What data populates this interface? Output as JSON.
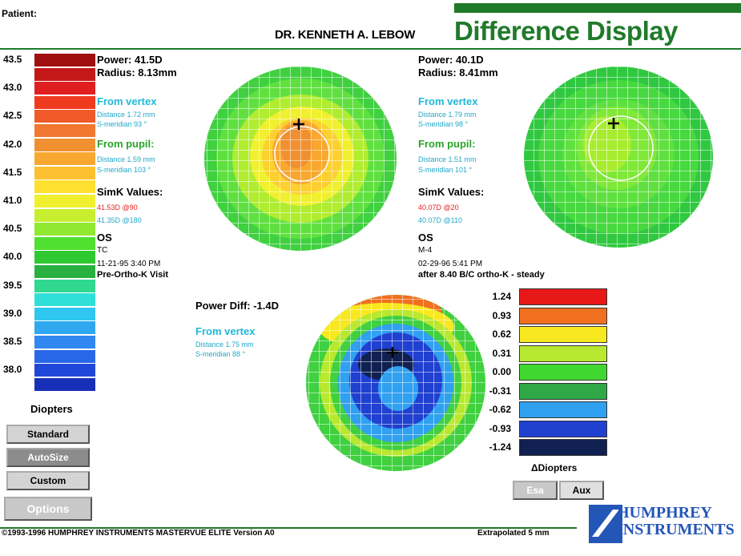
{
  "header": {
    "patient_label": "Patient:",
    "doctor": "DR. KENNETH A. LEBOW",
    "title": "Difference Display"
  },
  "left_scale": {
    "items": [
      {
        "label": "43.5",
        "color": "#a01010"
      },
      {
        "label": "",
        "color": "#c41818"
      },
      {
        "label": "43.0",
        "color": "#e02020"
      },
      {
        "label": "",
        "color": "#f03a20"
      },
      {
        "label": "42.5",
        "color": "#f05a28"
      },
      {
        "label": "",
        "color": "#f07830"
      },
      {
        "label": "42.0",
        "color": "#f09030"
      },
      {
        "label": "",
        "color": "#f8a830"
      },
      {
        "label": "41.5",
        "color": "#fcc030"
      },
      {
        "label": "",
        "color": "#ffe030"
      },
      {
        "label": "41.0",
        "color": "#f0f030"
      },
      {
        "label": "",
        "color": "#c8ee30"
      },
      {
        "label": "40.5",
        "color": "#90e830"
      },
      {
        "label": "",
        "color": "#50e030"
      },
      {
        "label": "40.0",
        "color": "#30c830"
      },
      {
        "label": "",
        "color": "#28b040"
      },
      {
        "label": "39.5",
        "color": "#30d890"
      },
      {
        "label": "",
        "color": "#30e0d8"
      },
      {
        "label": "39.0",
        "color": "#30c8f0"
      },
      {
        "label": "",
        "color": "#30a8f0"
      },
      {
        "label": "38.5",
        "color": "#3088f0"
      },
      {
        "label": "",
        "color": "#2868e8"
      },
      {
        "label": "38.0",
        "color": "#2048d8"
      },
      {
        "label": "",
        "color": "#1830b8"
      }
    ],
    "unit": "Diopters"
  },
  "buttons": {
    "standard": "Standard",
    "autosize": "AutoSize",
    "custom": "Custom",
    "options": "Options",
    "esa": "Esa",
    "aux": "Aux"
  },
  "map1": {
    "power": "Power:  41.5D",
    "radius": "Radius:  8.13mm",
    "from_vertex": "From vertex",
    "vertex_distance": "Distance       1.72 mm",
    "vertex_sm": "S-meridian         93 °",
    "from_pupil": "From pupil:",
    "pupil_distance": "Distance       1.59 mm",
    "pupil_sm": "S-meridian       103 °",
    "simk": "SimK Values:",
    "simk1": "41.53D @90",
    "simk2": "41.35D @180",
    "eye": "OS",
    "code": "TC",
    "date": "11-21-95 3:40 PM",
    "visit": "Pre-Ortho-K Visit"
  },
  "map2": {
    "power": "Power:  40.1D",
    "radius": "Radius:  8.41mm",
    "from_vertex": "From vertex",
    "vertex_distance": "Distance       1.79 mm",
    "vertex_sm": "S-meridian         98 °",
    "from_pupil": "From pupil:",
    "pupil_distance": "Distance       1.51 mm",
    "pupil_sm": "S-meridian       101 °",
    "simk": "SimK Values:",
    "simk1": "40.07D @20",
    "simk2": "40.07D @110",
    "eye": "OS",
    "code": "M-4",
    "date": "02-29-96 5:41 PM",
    "visit": "after 8.40 B/C ortho-K - steady"
  },
  "diff": {
    "power": "Power Diff: -1.4D",
    "from_vertex": "From vertex",
    "vertex_distance": "Distance       1.75 mm",
    "vertex_sm": "S-meridian         88 °",
    "scale": [
      {
        "label": "1.24",
        "color": "#e81818"
      },
      {
        "label": "0.93",
        "color": "#f07020"
      },
      {
        "label": "0.62",
        "color": "#f8e820"
      },
      {
        "label": "0.31",
        "color": "#b8e830"
      },
      {
        "label": "0.00",
        "color": "#40d830"
      },
      {
        "label": "-0.31",
        "color": "#30a848"
      },
      {
        "label": "-0.62",
        "color": "#30a0f0"
      },
      {
        "label": "-0.93",
        "color": "#2040d0"
      },
      {
        "label": "-1.24",
        "color": "#102050"
      }
    ],
    "unit": "ΔDiopters"
  },
  "footer": {
    "copyright": "©1993-1996 HUMPHREY INSTRUMENTS MASTERVUE ELITE Version A0",
    "extrapolated": "Extrapolated 5 mm",
    "logo_line1": "HUMPHREY",
    "logo_line2": "INSTRUMENTS"
  }
}
